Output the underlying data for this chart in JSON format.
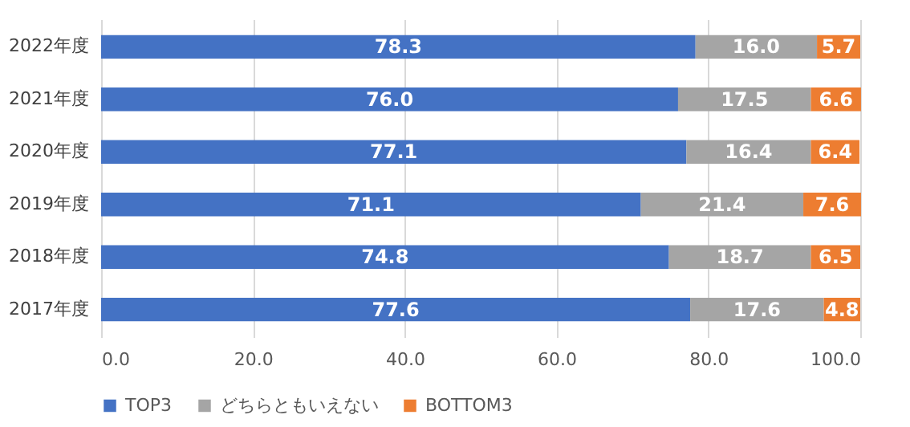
{
  "chart_data": {
    "type": "bar",
    "orientation": "horizontal",
    "stacked": true,
    "categories": [
      "2022年度",
      "2021年度",
      "2020年度",
      "2019年度",
      "2018年度",
      "2017年度"
    ],
    "series": [
      {
        "name": "TOP3",
        "color": "#4472c4",
        "values": [
          78.3,
          76.0,
          77.1,
          71.1,
          74.8,
          77.6
        ],
        "value_labels": [
          "78.3",
          "76.0",
          "77.1",
          "71.1",
          "74.8",
          "77.6"
        ]
      },
      {
        "name": "どちらともいえない",
        "color": "#a5a5a5",
        "values": [
          16.0,
          17.5,
          16.4,
          21.4,
          18.7,
          17.6
        ],
        "value_labels": [
          "16.0",
          "17.5",
          "16.4",
          "21.4",
          "18.7",
          "17.6"
        ]
      },
      {
        "name": "BOTTOM3",
        "color": "#ed7d31",
        "values": [
          5.7,
          6.6,
          6.4,
          7.6,
          6.5,
          4.8
        ],
        "value_labels": [
          "5.7",
          "6.6",
          "6.4",
          "7.6",
          "6.5",
          "4.8"
        ]
      }
    ],
    "xlim": [
      0,
      100
    ],
    "xticks": [
      {
        "value": 0,
        "label": "0.0"
      },
      {
        "value": 20,
        "label": "20.0"
      },
      {
        "value": 40,
        "label": "40.0"
      },
      {
        "value": 60,
        "label": "60.0"
      },
      {
        "value": 80,
        "label": "80.0"
      },
      {
        "value": 100,
        "label": "100.0"
      }
    ],
    "grid": "x",
    "legend": "bottom"
  }
}
